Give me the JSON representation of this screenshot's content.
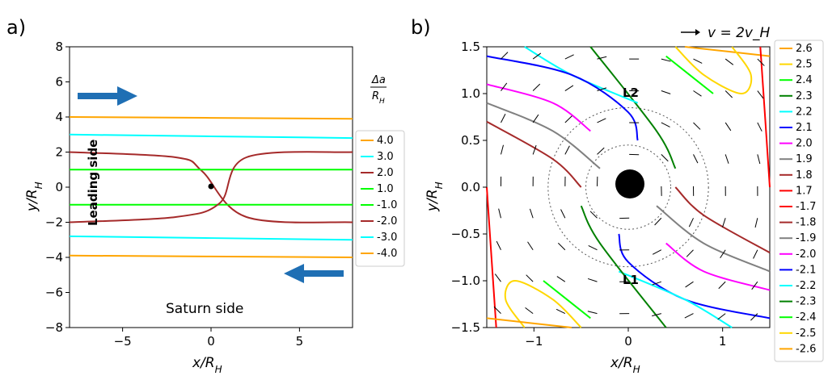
{
  "chart_data": [
    {
      "panel": "a)",
      "type": "line",
      "xlabel": "x/R_H",
      "ylabel": "y/R_H",
      "xlim": [
        -8,
        8
      ],
      "ylim": [
        -8,
        8
      ],
      "xticks": [
        -5,
        0,
        5
      ],
      "yticks": [
        -8,
        -6,
        -4,
        -2,
        0,
        2,
        4,
        6,
        8
      ],
      "legend_title": "Δa/R_H",
      "legend_placement": "right of panel",
      "annotations": [
        "Leading side",
        "Saturn side"
      ],
      "grid": false,
      "series": [
        {
          "name": "4.0",
          "color": "#ffa500",
          "points": [
            [
              -8,
              4.0
            ],
            [
              8,
              3.9
            ]
          ]
        },
        {
          "name": "3.0",
          "color": "#00ffff",
          "points": [
            [
              -8,
              3.0
            ],
            [
              8,
              2.8
            ]
          ]
        },
        {
          "name": "2.0",
          "color": "#a52a2a",
          "points": [
            [
              -8,
              2.0
            ],
            [
              -2,
              1.7
            ],
            [
              -0.5,
              0.9
            ],
            [
              2,
              -1.7
            ],
            [
              8,
              -2.0
            ]
          ]
        },
        {
          "name": "1.0",
          "color": "#00ff00",
          "points": [
            [
              -8,
              1.0
            ],
            [
              8,
              1.0
            ]
          ]
        },
        {
          "name": "-1.0",
          "color": "#00ff00",
          "points": [
            [
              -8,
              -1.0
            ],
            [
              8,
              -1.0
            ]
          ]
        },
        {
          "name": "-2.0",
          "color": "#a52a2a",
          "points": [
            [
              -8,
              -2.0
            ],
            [
              -2,
              -1.7
            ],
            [
              0.5,
              -0.9
            ],
            [
              2,
              1.7
            ],
            [
              8,
              2.0
            ]
          ]
        },
        {
          "name": "-3.0",
          "color": "#00ffff",
          "points": [
            [
              -8,
              -2.8
            ],
            [
              8,
              -3.0
            ]
          ]
        },
        {
          "name": "-4.0",
          "color": "#ffa500",
          "points": [
            [
              -8,
              -3.9
            ],
            [
              8,
              -4.0
            ]
          ]
        }
      ]
    },
    {
      "panel": "b)",
      "type": "line",
      "xlabel": "x/R_H",
      "ylabel": "y/R_H",
      "xlim": [
        -1.5,
        1.5
      ],
      "ylim": [
        -1.5,
        1.5
      ],
      "xticks": [
        -1,
        0,
        1
      ],
      "yticks": [
        -1.5,
        -1.0,
        -0.5,
        0.0,
        0.5,
        1.0,
        1.5
      ],
      "velocity_key": "v = 2v_H",
      "annotations": [
        "L2",
        "L1"
      ],
      "grid": false,
      "series": [
        {
          "name": "2.6",
          "color": "#ffa500",
          "points": [
            [
              0.6,
              1.5
            ],
            [
              1.5,
              1.4
            ]
          ]
        },
        {
          "name": "2.5",
          "color": "#ffd700",
          "points": [
            [
              0.5,
              1.5
            ],
            [
              0.8,
              1.2
            ],
            [
              1.2,
              1.0
            ],
            [
              1.3,
              1.2
            ],
            [
              1.1,
              1.5
            ]
          ]
        },
        {
          "name": "2.4",
          "color": "#00ff00",
          "points": [
            [
              0.9,
              1.0
            ],
            [
              0.4,
              1.4
            ]
          ]
        },
        {
          "name": "2.3",
          "color": "#008000",
          "points": [
            [
              -0.4,
              1.5
            ],
            [
              0.3,
              0.6
            ],
            [
              0.5,
              0.2
            ]
          ]
        },
        {
          "name": "2.2",
          "color": "#00ffff",
          "points": [
            [
              -1.1,
              1.5
            ],
            [
              -0.6,
              1.2
            ],
            [
              0.1,
              0.9
            ]
          ]
        },
        {
          "name": "2.1",
          "color": "#0000ff",
          "points": [
            [
              -1.5,
              1.4
            ],
            [
              -0.6,
              1.2
            ],
            [
              0.0,
              0.8
            ],
            [
              0.1,
              0.5
            ]
          ]
        },
        {
          "name": "2.0",
          "color": "#ff00ff",
          "points": [
            [
              -1.5,
              1.1
            ],
            [
              -0.8,
              0.9
            ],
            [
              -0.4,
              0.6
            ]
          ]
        },
        {
          "name": "1.9",
          "color": "#808080",
          "points": [
            [
              -1.5,
              0.9
            ],
            [
              -0.8,
              0.6
            ],
            [
              -0.3,
              0.2
            ]
          ]
        },
        {
          "name": "1.8",
          "color": "#a52a2a",
          "points": [
            [
              -1.5,
              0.7
            ],
            [
              -0.8,
              0.3
            ],
            [
              -0.5,
              0.0
            ]
          ]
        },
        {
          "name": "1.7",
          "color": "#ff0000",
          "points": [
            [
              -1.5,
              0.0
            ],
            [
              -1.4,
              -1.5
            ]
          ]
        },
        {
          "name": "-1.7",
          "color": "#ff0000",
          "points": [
            [
              1.5,
              0.0
            ],
            [
              1.4,
              1.5
            ]
          ]
        },
        {
          "name": "-1.8",
          "color": "#a52a2a",
          "points": [
            [
              1.5,
              -0.7
            ],
            [
              0.8,
              -0.3
            ],
            [
              0.5,
              0.0
            ]
          ]
        },
        {
          "name": "-1.9",
          "color": "#808080",
          "points": [
            [
              1.5,
              -0.9
            ],
            [
              0.8,
              -0.6
            ],
            [
              0.3,
              -0.2
            ]
          ]
        },
        {
          "name": "-2.0",
          "color": "#ff00ff",
          "points": [
            [
              1.5,
              -1.1
            ],
            [
              0.8,
              -0.9
            ],
            [
              0.4,
              -0.6
            ]
          ]
        },
        {
          "name": "-2.1",
          "color": "#0000ff",
          "points": [
            [
              1.5,
              -1.4
            ],
            [
              0.6,
              -1.2
            ],
            [
              0.0,
              -0.8
            ],
            [
              -0.1,
              -0.5
            ]
          ]
        },
        {
          "name": "-2.2",
          "color": "#00ffff",
          "points": [
            [
              1.1,
              -1.5
            ],
            [
              0.6,
              -1.2
            ],
            [
              -0.1,
              -0.9
            ]
          ]
        },
        {
          "name": "-2.3",
          "color": "#008000",
          "points": [
            [
              0.4,
              -1.5
            ],
            [
              -0.3,
              -0.6
            ],
            [
              -0.5,
              -0.2
            ]
          ]
        },
        {
          "name": "-2.4",
          "color": "#00ff00",
          "points": [
            [
              -0.9,
              -1.0
            ],
            [
              -0.4,
              -1.4
            ]
          ]
        },
        {
          "name": "-2.5",
          "color": "#ffd700",
          "points": [
            [
              -0.5,
              -1.5
            ],
            [
              -0.8,
              -1.2
            ],
            [
              -1.2,
              -1.0
            ],
            [
              -1.3,
              -1.2
            ],
            [
              -1.1,
              -1.5
            ]
          ]
        },
        {
          "name": "-2.6",
          "color": "#ffa500",
          "points": [
            [
              -0.6,
              -1.5
            ],
            [
              -1.5,
              -1.4
            ]
          ]
        }
      ]
    }
  ]
}
